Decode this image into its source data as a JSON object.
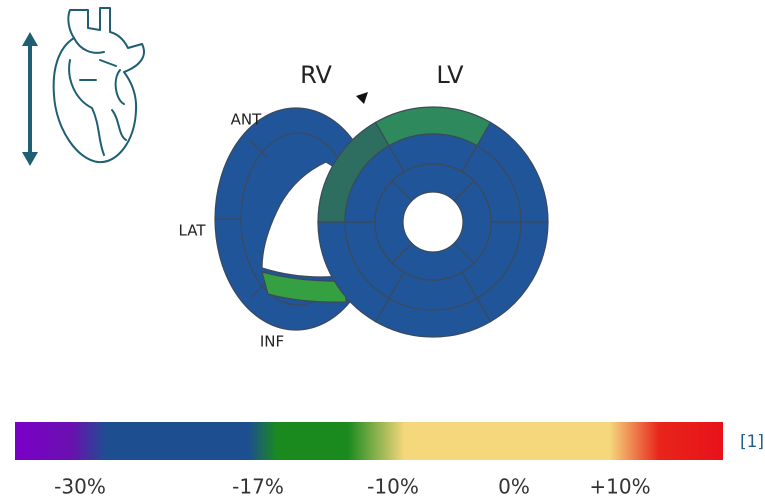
{
  "header": {
    "rv_label": "RV",
    "lv_label": "LV"
  },
  "labels": {
    "anterior": "ANT",
    "lateral": "LAT",
    "inferior": "INF"
  },
  "colorbar": {
    "ticks": [
      "-30%",
      "-17%",
      "-10%",
      "0%",
      "+10%"
    ],
    "reference": "[1]"
  }
}
